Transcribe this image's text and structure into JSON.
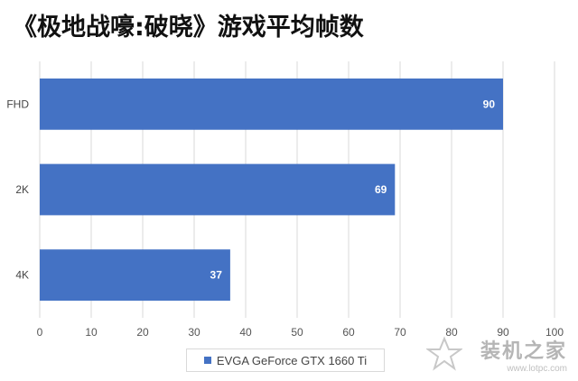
{
  "chart_data": {
    "type": "bar",
    "orientation": "horizontal",
    "title": "《极地战嚎:破晓》游戏平均帧数",
    "categories": [
      "FHD",
      "2K",
      "4K"
    ],
    "series": [
      {
        "name": "EVGA GeForce GTX 1660 Ti",
        "values": [
          90,
          69,
          37
        ]
      }
    ],
    "xlim": [
      0,
      100
    ],
    "xticks": [
      0,
      10,
      20,
      30,
      40,
      50,
      60,
      70,
      80,
      90,
      100
    ],
    "grid": true,
    "legend_position": "bottom",
    "bar_color": "#4472c4"
  },
  "watermark": {
    "name": "装机之家",
    "url": "www.lotpc.com"
  }
}
